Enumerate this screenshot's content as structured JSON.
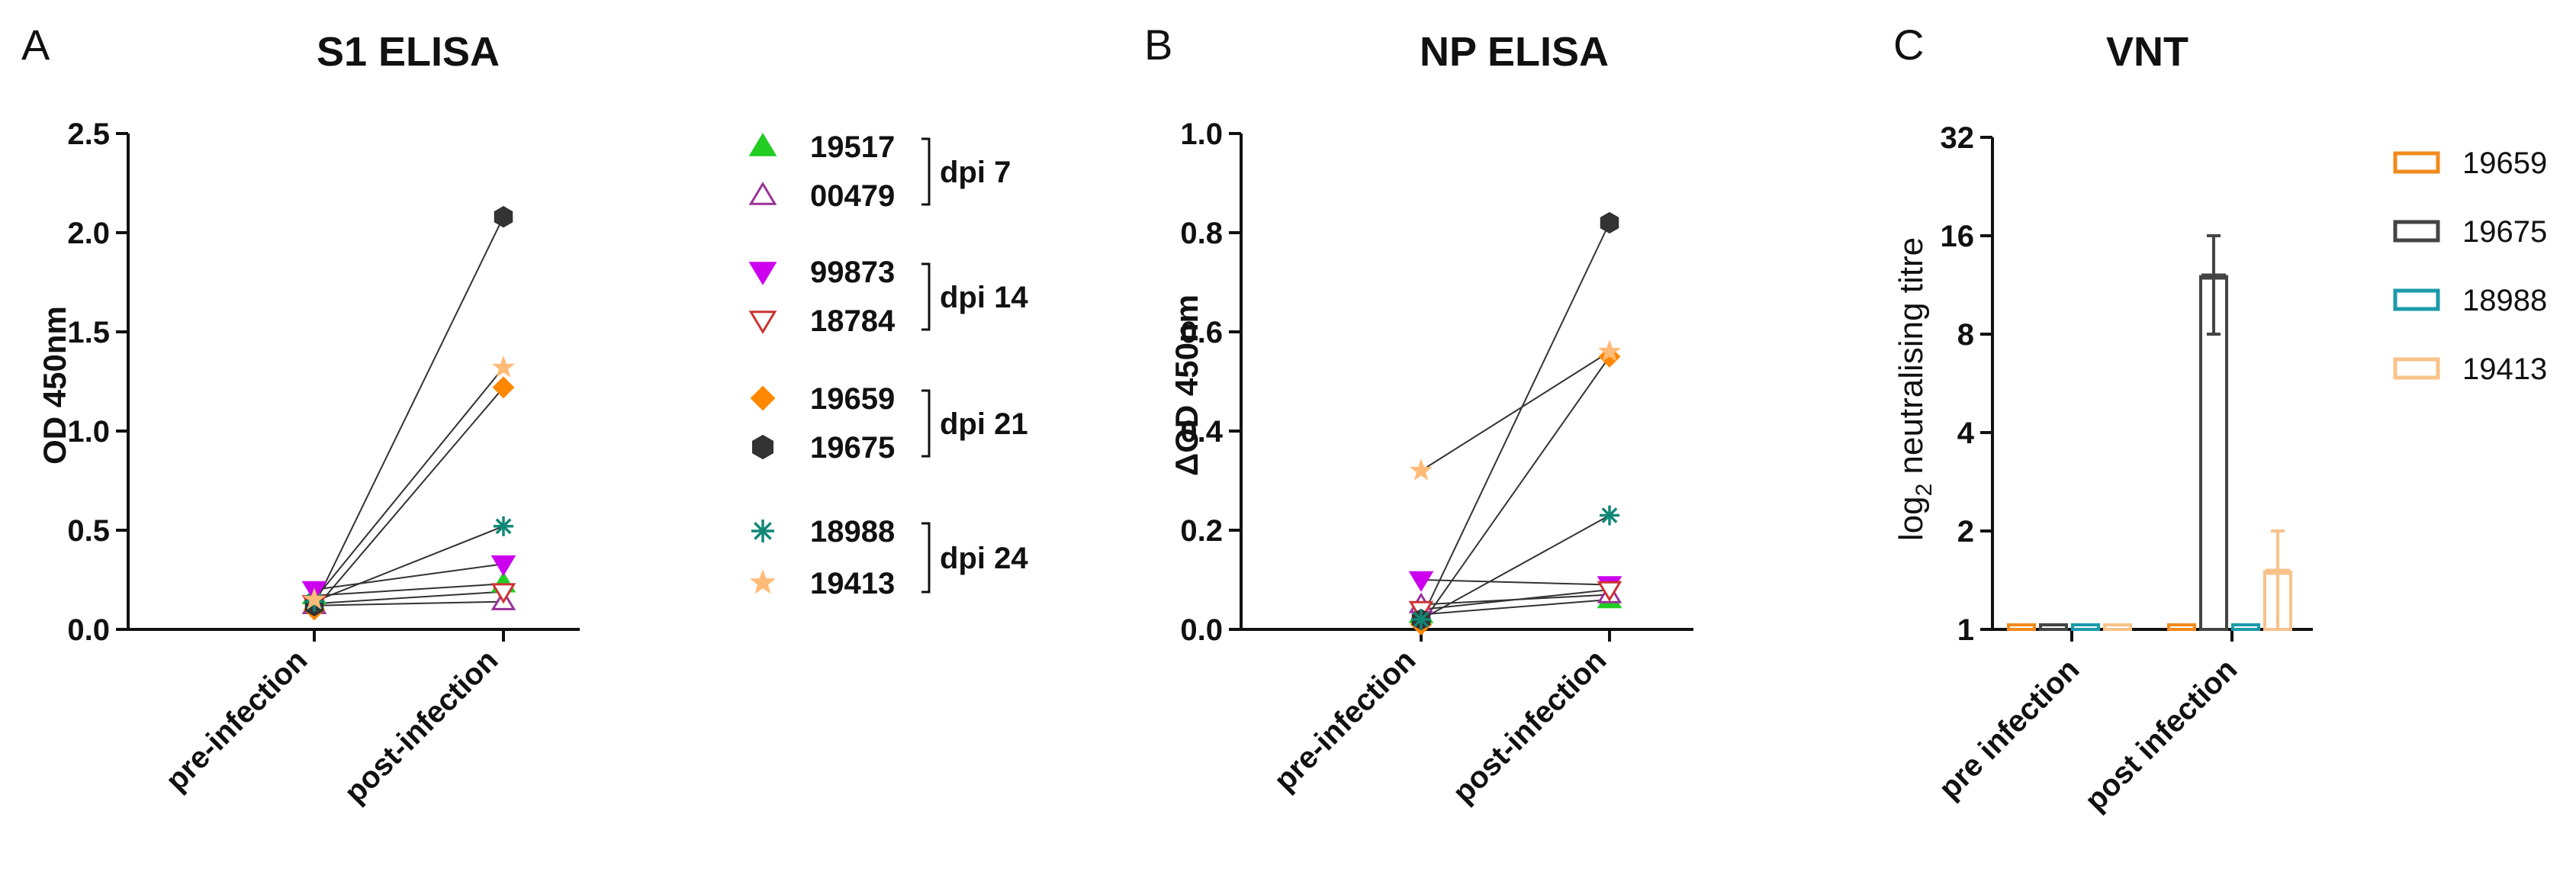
{
  "colors": {
    "19517": "#22cc22",
    "00479": "#993399",
    "99873": "#cc00ee",
    "18784": "#cc3333",
    "19659": "#ff8800",
    "19675": "#333333",
    "18988": "#118877",
    "19413": "#ffbb77",
    "vnt_19659": "#f28a1e",
    "vnt_19675": "#444444",
    "vnt_18988": "#1b9aaa",
    "vnt_19413": "#f8c28a"
  },
  "legend_groups": [
    {
      "label": "dpi 7",
      "ids": [
        "19517",
        "00479"
      ]
    },
    {
      "label": "dpi 14",
      "ids": [
        "99873",
        "18784"
      ]
    },
    {
      "label": "dpi 21",
      "ids": [
        "19659",
        "19675"
      ]
    },
    {
      "label": "dpi 24",
      "ids": [
        "18988",
        "19413"
      ]
    }
  ],
  "markers": {
    "19517": "triangle-up-filled",
    "00479": "triangle-up-open",
    "99873": "triangle-down-filled",
    "18784": "triangle-down-open",
    "19659": "diamond-filled",
    "19675": "hexagon-filled",
    "18988": "asterisk",
    "19413": "star-filled"
  },
  "chart_data": [
    {
      "panel": "A",
      "type": "line",
      "title": "S1 ELISA",
      "xlabel": "",
      "ylabel": "OD 450nm",
      "categories": [
        "pre-infection",
        "post-infection"
      ],
      "ylim": [
        0,
        2.5
      ],
      "yticks": [
        "0.0",
        "0.5",
        "1.0",
        "1.5",
        "2.0",
        "2.5"
      ],
      "series": [
        {
          "name": "19517",
          "values": [
            0.17,
            0.23
          ]
        },
        {
          "name": "00479",
          "values": [
            0.12,
            0.14
          ]
        },
        {
          "name": "99873",
          "values": [
            0.2,
            0.33
          ]
        },
        {
          "name": "18784",
          "values": [
            0.13,
            0.19
          ]
        },
        {
          "name": "19659",
          "values": [
            0.1,
            1.22
          ]
        },
        {
          "name": "19675",
          "values": [
            0.12,
            2.08
          ]
        },
        {
          "name": "18988",
          "values": [
            0.14,
            0.52
          ]
        },
        {
          "name": "19413",
          "values": [
            0.15,
            1.32
          ]
        }
      ]
    },
    {
      "panel": "B",
      "type": "line",
      "title": "NP ELISA",
      "xlabel": "",
      "ylabel": "ΔOD 450nm",
      "categories": [
        "pre-infection",
        "post-infection"
      ],
      "ylim": [
        0,
        1.0
      ],
      "yticks": [
        "0.0",
        "0.2",
        "0.4",
        "0.6",
        "0.8",
        "1.0"
      ],
      "series": [
        {
          "name": "19517",
          "values": [
            0.03,
            0.06
          ]
        },
        {
          "name": "00479",
          "values": [
            0.05,
            0.07
          ]
        },
        {
          "name": "99873",
          "values": [
            0.1,
            0.09
          ]
        },
        {
          "name": "18784",
          "values": [
            0.04,
            0.08
          ]
        },
        {
          "name": "19659",
          "values": [
            0.01,
            0.55
          ]
        },
        {
          "name": "19675",
          "values": [
            0.02,
            0.82
          ]
        },
        {
          "name": "18988",
          "values": [
            0.02,
            0.23
          ]
        },
        {
          "name": "19413",
          "values": [
            0.32,
            0.56
          ]
        }
      ]
    },
    {
      "panel": "C",
      "type": "bar",
      "title": "VNT",
      "xlabel": "",
      "ylabel": "log2 neutralising titre",
      "ylabel_main": "log",
      "ylabel_sub": "2",
      "ylabel_rest": " neutralising titre",
      "categories": [
        "pre infection",
        "post infection"
      ],
      "ylim": [
        1,
        32
      ],
      "yscale": "log2",
      "yticks": [
        "1",
        "2",
        "4",
        "8",
        "16",
        "32"
      ],
      "series": [
        {
          "name": "19659",
          "values": [
            1,
            1
          ],
          "err_low": [
            1,
            1
          ],
          "err_high": [
            1,
            1
          ]
        },
        {
          "name": "19675",
          "values": [
            1,
            12
          ],
          "err_low": [
            1,
            8
          ],
          "err_high": [
            1,
            16
          ]
        },
        {
          "name": "18988",
          "values": [
            1,
            1
          ],
          "err_low": [
            1,
            1
          ],
          "err_high": [
            1,
            1
          ]
        },
        {
          "name": "19413",
          "values": [
            1,
            1.5
          ],
          "err_low": [
            1,
            1
          ],
          "err_high": [
            1,
            2
          ]
        }
      ]
    }
  ],
  "panel_letters": [
    "A",
    "B",
    "C"
  ]
}
